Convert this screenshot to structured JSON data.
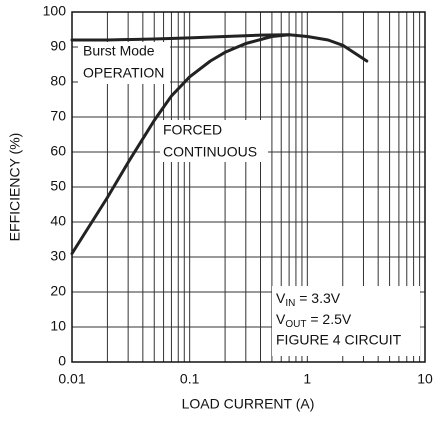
{
  "chart_data": {
    "type": "line",
    "xlabel": "LOAD CURRENT (A)",
    "ylabel": "EFFICIENCY (%)",
    "xscale": "log",
    "grid": true,
    "xlim": [
      0.01,
      10
    ],
    "ylim": [
      0,
      100
    ],
    "xticks": [
      0.01,
      0.1,
      1,
      10
    ],
    "xminorticks": [
      0.02,
      0.03,
      0.04,
      0.05,
      0.06,
      0.07,
      0.08,
      0.09,
      0.2,
      0.3,
      0.4,
      0.5,
      0.6,
      0.7,
      0.8,
      0.9,
      2,
      3,
      4,
      5,
      6,
      7,
      8,
      9
    ],
    "yticks": [
      0,
      10,
      20,
      30,
      40,
      50,
      60,
      70,
      80,
      90,
      100
    ],
    "series": [
      {
        "color": "#222222",
        "x": [
          0.01,
          0.02,
          0.05,
          0.1,
          0.2,
          0.4,
          0.7,
          1,
          1.5,
          2,
          3.2
        ],
        "values": [
          92,
          92,
          92.3,
          92.6,
          93,
          93.4,
          93.5,
          93,
          92,
          90.5,
          86
        ]
      },
      {
        "color": "#222222",
        "x": [
          0.01,
          0.02,
          0.03,
          0.05,
          0.07,
          0.1,
          0.15,
          0.2,
          0.3,
          0.5,
          0.7
        ],
        "values": [
          31,
          47,
          57,
          69,
          76,
          81.5,
          86,
          88.5,
          91,
          93,
          93.5
        ]
      }
    ],
    "annotations": [
      {
        "lines": [
          "Burst Mode",
          "OPERATION"
        ]
      },
      {
        "lines": [
          "FORCED",
          "CONTINUOUS"
        ]
      },
      {
        "lines": [
          {
            "main": "V",
            "sub": "IN",
            "rest": " = 3.3V"
          },
          {
            "main": "V",
            "sub": "OUT",
            "rest": " = 2.5V"
          },
          "FIGURE 4 CIRCUIT"
        ]
      }
    ]
  }
}
